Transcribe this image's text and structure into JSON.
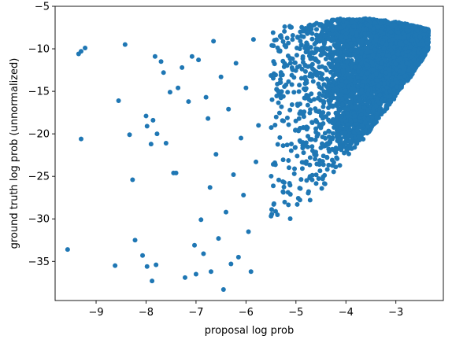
{
  "chart_data": {
    "type": "scatter",
    "title": "",
    "xlabel": "proposal log prob",
    "ylabel": "ground truth log prob (unnormalized)",
    "xlim": [
      -9.82,
      -2.05
    ],
    "ylim": [
      -39.6,
      -5.0
    ],
    "xticks": [
      -9,
      -8,
      -7,
      -6,
      -5,
      -4,
      -3
    ],
    "yticks": [
      -35,
      -30,
      -25,
      -20,
      -15,
      -10,
      -5
    ],
    "grid": false,
    "marker_color": "#1f77b4",
    "dense_region": {
      "description_only": false,
      "x_range": [
        -5.5,
        -2.35
      ],
      "y_range": [
        -33.5,
        -6.4
      ]
    },
    "points": [
      [
        -9.57,
        -33.6
      ],
      [
        -9.35,
        -10.6
      ],
      [
        -9.3,
        -10.3
      ],
      [
        -9.3,
        -20.6
      ],
      [
        -9.22,
        -9.9
      ],
      [
        -8.62,
        -35.5
      ],
      [
        -8.55,
        -16.1
      ],
      [
        -8.42,
        -9.5
      ],
      [
        -8.33,
        -20.1
      ],
      [
        -8.27,
        -25.4
      ],
      [
        -8.22,
        -32.5
      ],
      [
        -8.07,
        -34.3
      ],
      [
        -7.98,
        -35.6
      ],
      [
        -8.0,
        -17.9
      ],
      [
        -7.98,
        -19.1
      ],
      [
        -7.88,
        -37.3
      ],
      [
        -7.9,
        -21.2
      ],
      [
        -7.82,
        -10.9
      ],
      [
        -7.8,
        -35.4
      ],
      [
        -7.86,
        -18.4
      ],
      [
        -7.78,
        -20.0
      ],
      [
        -7.7,
        -11.5
      ],
      [
        -7.65,
        -12.8
      ],
      [
        -7.6,
        -21.1
      ],
      [
        -7.52,
        -15.1
      ],
      [
        -7.45,
        -24.6
      ],
      [
        -7.4,
        -24.6
      ],
      [
        -7.36,
        -14.6
      ],
      [
        -7.28,
        -12.2
      ],
      [
        -7.22,
        -36.9
      ],
      [
        -7.15,
        -16.2
      ],
      [
        -7.08,
        -10.9
      ],
      [
        -7.03,
        -33.1
      ],
      [
        -7.0,
        -36.5
      ],
      [
        -6.95,
        -11.3
      ],
      [
        -6.9,
        -30.1
      ],
      [
        -6.85,
        -34.1
      ],
      [
        -6.8,
        -15.7
      ],
      [
        -6.76,
        -18.2
      ],
      [
        -6.72,
        -26.3
      ],
      [
        -6.7,
        -36.2
      ],
      [
        -6.65,
        -9.1
      ],
      [
        -6.6,
        -22.4
      ],
      [
        -6.55,
        -32.3
      ],
      [
        -6.5,
        -13.3
      ],
      [
        -6.45,
        -38.3
      ],
      [
        -6.4,
        -29.2
      ],
      [
        -6.35,
        -17.1
      ],
      [
        -6.3,
        -35.3
      ],
      [
        -6.25,
        -24.8
      ],
      [
        -6.2,
        -11.7
      ],
      [
        -6.15,
        -34.5
      ],
      [
        -6.1,
        -20.5
      ],
      [
        -6.05,
        -27.2
      ],
      [
        -6.0,
        -14.6
      ],
      [
        -5.95,
        -31.5
      ],
      [
        -5.9,
        -36.2
      ],
      [
        -5.85,
        -8.9
      ],
      [
        -5.8,
        -23.3
      ],
      [
        -5.75,
        -19.0
      ]
    ]
  }
}
